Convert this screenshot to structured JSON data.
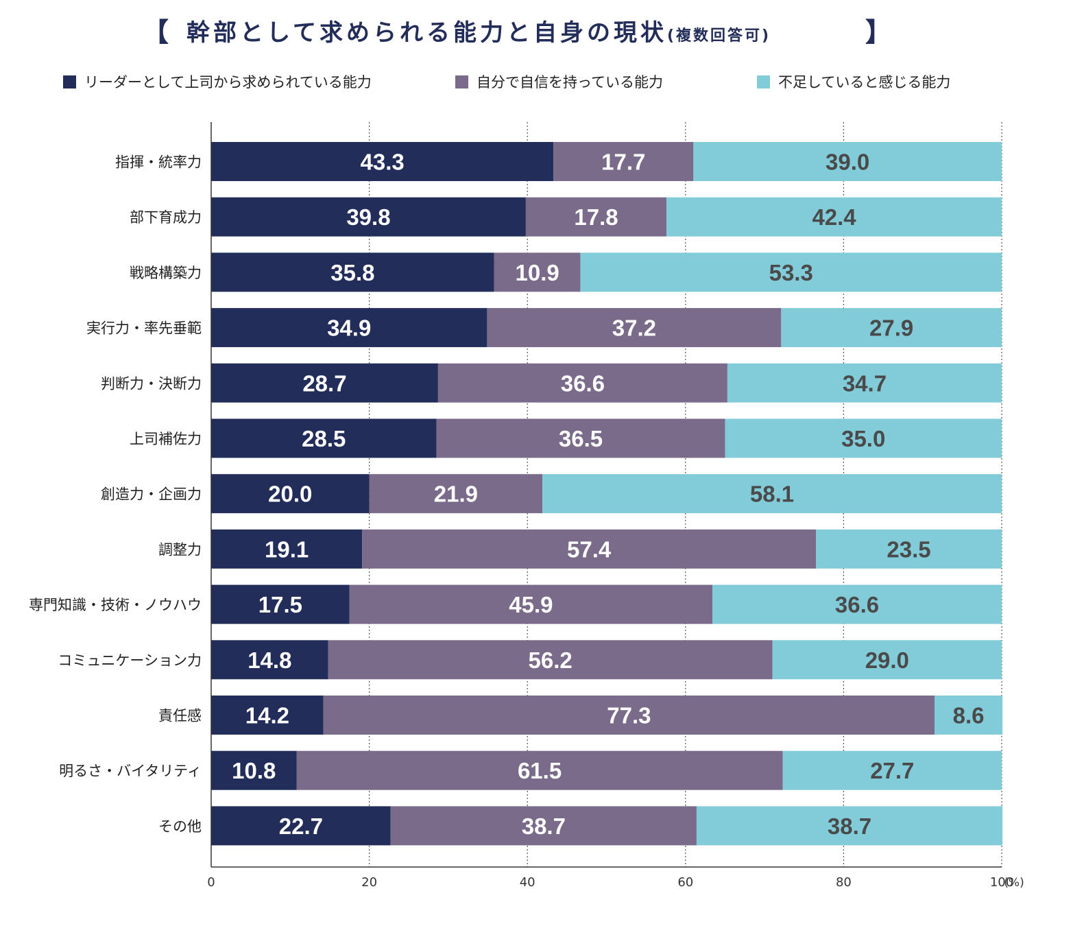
{
  "title": {
    "bracket_open": "【",
    "main": "幹部として求められる能力と自身の現状",
    "sub": "(複数回答可)",
    "bracket_close": "】"
  },
  "colors": {
    "series": [
      "#222d5a",
      "#7b6b8a",
      "#82cbd8"
    ],
    "label_light": "#ffffff",
    "label_dark": "#4a4a4a",
    "axis": "#333333",
    "grid": "#555555"
  },
  "chart_data": {
    "type": "bar",
    "orientation": "horizontal",
    "stacked": true,
    "categories": [
      "指揮・統率力",
      "部下育成力",
      "戦略構築力",
      "実行力・率先垂範",
      "判断力・決断力",
      "上司補佐力",
      "創造力・企画力",
      "調整力",
      "専門知識・技術・ノウハウ",
      "コミュニケーション力",
      "責任感",
      "明るさ・バイタリティ",
      "その他"
    ],
    "series": [
      {
        "name": "リーダーとして上司から求められている能力",
        "values": [
          43.3,
          39.8,
          35.8,
          34.9,
          28.7,
          28.5,
          20.0,
          19.1,
          17.5,
          14.8,
          14.2,
          10.8,
          22.7
        ],
        "labels": [
          "43.3",
          "39.8",
          "35.8",
          "34.9",
          "28.7",
          "28.5",
          "20.0",
          "19.1",
          "17.5",
          "14.8",
          "14.2",
          "10.8",
          "22.7"
        ]
      },
      {
        "name": "自分で自信を持っている能力",
        "values": [
          17.7,
          17.8,
          10.9,
          37.2,
          36.6,
          36.5,
          21.9,
          57.4,
          45.9,
          56.2,
          77.3,
          61.5,
          38.7
        ],
        "labels": [
          "17.7",
          "17.8",
          "10.9",
          "37.2",
          "36.6",
          "36.5",
          "21.9",
          "57.4",
          "45.9",
          "56.2",
          "77.3",
          "61.5",
          "38.7"
        ]
      },
      {
        "name": "不足していると感じる能力",
        "values": [
          39.0,
          42.4,
          53.3,
          27.9,
          34.7,
          35.0,
          58.1,
          23.5,
          36.6,
          29.0,
          8.6,
          27.7,
          38.7
        ],
        "labels": [
          "39.0",
          "42.4",
          "53.3",
          "27.9",
          "34.7",
          "35.0",
          "58.1",
          "23.5",
          "36.6",
          "29.0",
          "8.6",
          "27.7",
          "38.7"
        ]
      }
    ],
    "xlim": [
      0,
      100
    ],
    "xticks": [
      0,
      20,
      40,
      60,
      80,
      100
    ],
    "xtick_labels": [
      "0",
      "20",
      "40",
      "60",
      "80",
      "100"
    ],
    "xunit": "(%)",
    "grid": "vertical-dotted",
    "legend_position": "top"
  }
}
